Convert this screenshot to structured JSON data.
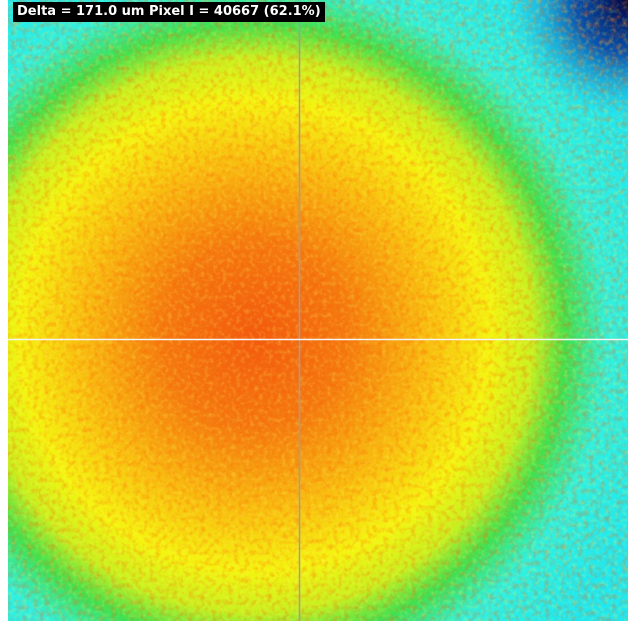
{
  "overlay": {
    "text": "Delta = 171.0 um Pixel I = 40667 (62.1%)"
  }
}
